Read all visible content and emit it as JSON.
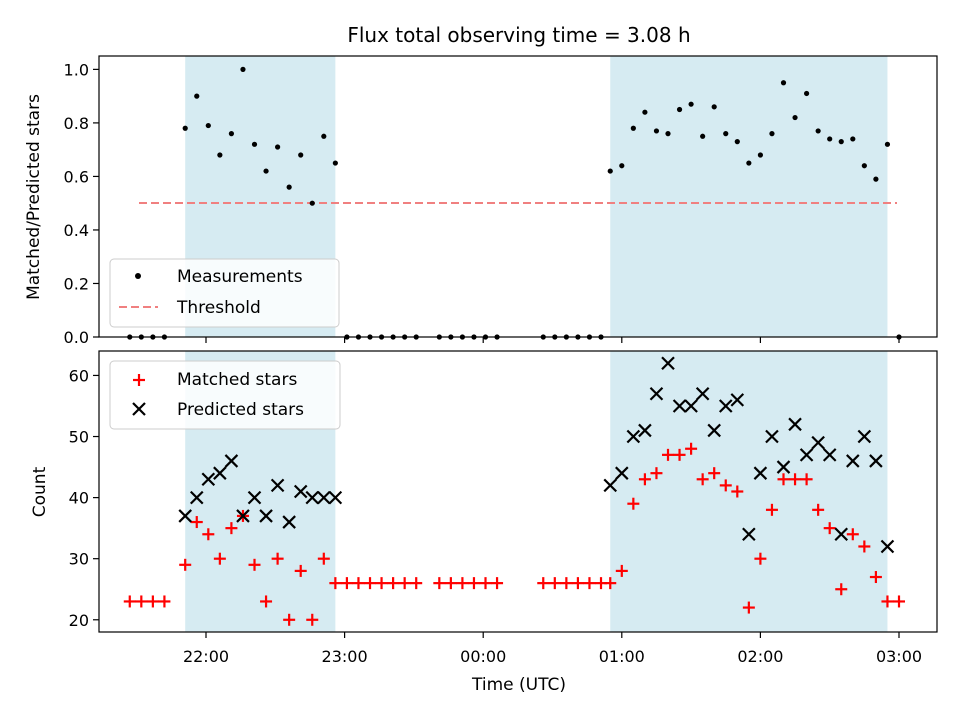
{
  "chart_data": [
    {
      "type": "scatter",
      "title": "Flux total observing time = 3.08 h",
      "xlabel": "",
      "ylabel": "Matched/Predicted stars",
      "ylim": [
        0,
        1.05
      ],
      "x_ticks": [
        "22:00",
        "23:00",
        "00:00",
        "01:00",
        "02:00",
        "03:00"
      ],
      "y_ticks": [
        "0.0",
        "0.2",
        "0.4",
        "0.6",
        "0.8",
        "1.0"
      ],
      "shaded_intervals": [
        [
          "21:51",
          "22:56"
        ],
        [
          "00:55",
          "02:55"
        ]
      ],
      "legend": {
        "position": "lower-left",
        "entries": [
          "Measurements",
          "Threshold"
        ]
      },
      "series": [
        {
          "name": "Measurements",
          "marker": "dot",
          "color": "#000000",
          "points": [
            [
              "21:27",
              0.0
            ],
            [
              "21:32",
              0.0
            ],
            [
              "21:37",
              0.0
            ],
            [
              "21:42",
              0.0
            ],
            [
              "21:51",
              0.78
            ],
            [
              "21:56",
              0.9
            ],
            [
              "22:01",
              0.79
            ],
            [
              "22:06",
              0.68
            ],
            [
              "22:11",
              0.76
            ],
            [
              "22:16",
              1.0
            ],
            [
              "22:21",
              0.72
            ],
            [
              "22:26",
              0.62
            ],
            [
              "22:31",
              0.71
            ],
            [
              "22:36",
              0.56
            ],
            [
              "22:41",
              0.68
            ],
            [
              "22:46",
              0.5
            ],
            [
              "22:51",
              0.75
            ],
            [
              "22:56",
              0.65
            ],
            [
              "23:01",
              0.0
            ],
            [
              "23:06",
              0.0
            ],
            [
              "23:11",
              0.0
            ],
            [
              "23:16",
              0.0
            ],
            [
              "23:21",
              0.0
            ],
            [
              "23:26",
              0.0
            ],
            [
              "23:31",
              0.0
            ],
            [
              "23:41",
              0.0
            ],
            [
              "23:46",
              0.0
            ],
            [
              "23:51",
              0.0
            ],
            [
              "23:56",
              0.0
            ],
            [
              "00:01",
              0.0
            ],
            [
              "00:06",
              0.0
            ],
            [
              "00:26",
              0.0
            ],
            [
              "00:31",
              0.0
            ],
            [
              "00:36",
              0.0
            ],
            [
              "00:41",
              0.0
            ],
            [
              "00:46",
              0.0
            ],
            [
              "00:51",
              0.0
            ],
            [
              "00:55",
              0.62
            ],
            [
              "01:00",
              0.64
            ],
            [
              "01:05",
              0.78
            ],
            [
              "01:10",
              0.84
            ],
            [
              "01:15",
              0.77
            ],
            [
              "01:20",
              0.76
            ],
            [
              "01:25",
              0.85
            ],
            [
              "01:30",
              0.87
            ],
            [
              "01:35",
              0.75
            ],
            [
              "01:40",
              0.86
            ],
            [
              "01:45",
              0.76
            ],
            [
              "01:50",
              0.73
            ],
            [
              "01:55",
              0.65
            ],
            [
              "02:00",
              0.68
            ],
            [
              "02:05",
              0.76
            ],
            [
              "02:10",
              0.95
            ],
            [
              "02:15",
              0.82
            ],
            [
              "02:20",
              0.91
            ],
            [
              "02:25",
              0.77
            ],
            [
              "02:30",
              0.74
            ],
            [
              "02:35",
              0.73
            ],
            [
              "02:40",
              0.74
            ],
            [
              "02:45",
              0.64
            ],
            [
              "02:50",
              0.59
            ],
            [
              "02:55",
              0.72
            ],
            [
              "03:00",
              0.0
            ]
          ]
        },
        {
          "name": "Threshold",
          "type": "line",
          "style": "dashed",
          "color": "#f08080",
          "points": [
            [
              "21:27",
              0.5
            ],
            [
              "03:00",
              0.5
            ]
          ]
        }
      ]
    },
    {
      "type": "scatter",
      "title": "",
      "xlabel": "Time (UTC)",
      "ylabel": "Count",
      "ylim": [
        18,
        64
      ],
      "x_ticks": [
        "22:00",
        "23:00",
        "00:00",
        "01:00",
        "02:00",
        "03:00"
      ],
      "y_ticks": [
        "20",
        "30",
        "40",
        "50",
        "60"
      ],
      "shaded_intervals": [
        [
          "21:51",
          "22:56"
        ],
        [
          "00:55",
          "02:55"
        ]
      ],
      "legend": {
        "position": "top-left",
        "entries": [
          "Matched stars",
          "Predicted stars"
        ]
      },
      "series": [
        {
          "name": "Matched stars",
          "marker": "plus",
          "color": "#ff0000",
          "points": [
            [
              "21:27",
              23
            ],
            [
              "21:32",
              23
            ],
            [
              "21:37",
              23
            ],
            [
              "21:42",
              23
            ],
            [
              "21:51",
              29
            ],
            [
              "21:56",
              36
            ],
            [
              "22:01",
              34
            ],
            [
              "22:06",
              30
            ],
            [
              "22:11",
              35
            ],
            [
              "22:16",
              37
            ],
            [
              "22:21",
              29
            ],
            [
              "22:26",
              23
            ],
            [
              "22:31",
              30
            ],
            [
              "22:36",
              20
            ],
            [
              "22:41",
              28
            ],
            [
              "22:46",
              20
            ],
            [
              "22:51",
              30
            ],
            [
              "22:56",
              26
            ],
            [
              "23:01",
              26
            ],
            [
              "23:06",
              26
            ],
            [
              "23:11",
              26
            ],
            [
              "23:16",
              26
            ],
            [
              "23:21",
              26
            ],
            [
              "23:26",
              26
            ],
            [
              "23:31",
              26
            ],
            [
              "23:41",
              26
            ],
            [
              "23:46",
              26
            ],
            [
              "23:51",
              26
            ],
            [
              "23:56",
              26
            ],
            [
              "00:01",
              26
            ],
            [
              "00:06",
              26
            ],
            [
              "00:26",
              26
            ],
            [
              "00:31",
              26
            ],
            [
              "00:36",
              26
            ],
            [
              "00:41",
              26
            ],
            [
              "00:46",
              26
            ],
            [
              "00:51",
              26
            ],
            [
              "00:55",
              26
            ],
            [
              "01:00",
              28
            ],
            [
              "01:05",
              39
            ],
            [
              "01:10",
              43
            ],
            [
              "01:15",
              44
            ],
            [
              "01:20",
              47
            ],
            [
              "01:25",
              47
            ],
            [
              "01:30",
              48
            ],
            [
              "01:35",
              43
            ],
            [
              "01:40",
              44
            ],
            [
              "01:45",
              42
            ],
            [
              "01:50",
              41
            ],
            [
              "01:55",
              22
            ],
            [
              "02:00",
              30
            ],
            [
              "02:05",
              38
            ],
            [
              "02:10",
              43
            ],
            [
              "02:15",
              43
            ],
            [
              "02:20",
              43
            ],
            [
              "02:25",
              38
            ],
            [
              "02:30",
              35
            ],
            [
              "02:35",
              25
            ],
            [
              "02:40",
              34
            ],
            [
              "02:45",
              32
            ],
            [
              "02:50",
              27
            ],
            [
              "02:55",
              23
            ],
            [
              "03:00",
              23
            ]
          ]
        },
        {
          "name": "Predicted stars",
          "marker": "x",
          "color": "#000000",
          "points": [
            [
              "21:51",
              37
            ],
            [
              "21:56",
              40
            ],
            [
              "22:01",
              43
            ],
            [
              "22:06",
              44
            ],
            [
              "22:11",
              46
            ],
            [
              "22:16",
              37
            ],
            [
              "22:21",
              40
            ],
            [
              "22:26",
              37
            ],
            [
              "22:31",
              42
            ],
            [
              "22:36",
              36
            ],
            [
              "22:41",
              41
            ],
            [
              "22:46",
              40
            ],
            [
              "22:51",
              40
            ],
            [
              "22:56",
              40
            ],
            [
              "00:55",
              42
            ],
            [
              "01:00",
              44
            ],
            [
              "01:05",
              50
            ],
            [
              "01:10",
              51
            ],
            [
              "01:15",
              57
            ],
            [
              "01:20",
              62
            ],
            [
              "01:25",
              55
            ],
            [
              "01:30",
              55
            ],
            [
              "01:35",
              57
            ],
            [
              "01:40",
              51
            ],
            [
              "01:45",
              55
            ],
            [
              "01:50",
              56
            ],
            [
              "01:55",
              34
            ],
            [
              "02:00",
              44
            ],
            [
              "02:05",
              50
            ],
            [
              "02:10",
              45
            ],
            [
              "02:15",
              52
            ],
            [
              "02:20",
              47
            ],
            [
              "02:25",
              49
            ],
            [
              "02:30",
              47
            ],
            [
              "02:35",
              34
            ],
            [
              "02:40",
              46
            ],
            [
              "02:45",
              50
            ],
            [
              "02:50",
              46
            ],
            [
              "02:55",
              32
            ]
          ]
        }
      ]
    }
  ]
}
